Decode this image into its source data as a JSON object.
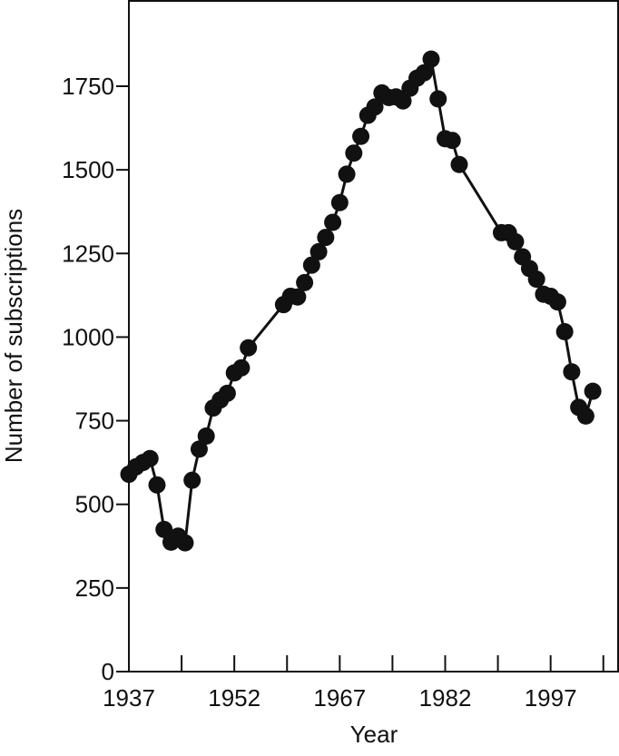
{
  "chart_data": {
    "type": "line",
    "x_label": "Year",
    "y_label": "Number of subscriptions",
    "x": [
      1937,
      1938,
      1939,
      1940,
      1941,
      1942,
      1943,
      1944,
      1945,
      1946,
      1947,
      1948,
      1949,
      1950,
      1951,
      1952,
      1953,
      1954,
      1959,
      1960,
      1961,
      1962,
      1963,
      1964,
      1965,
      1966,
      1967,
      1968,
      1969,
      1970,
      1971,
      1972,
      1973,
      1974,
      1975,
      1976,
      1977,
      1978,
      1979,
      1980,
      1981,
      1982,
      1983,
      1984,
      1990,
      1991,
      1992,
      1993,
      1994,
      1995,
      1996,
      1997,
      1998,
      1999,
      2000,
      2001,
      2002,
      2003
    ],
    "series": [
      {
        "color": "#111111",
        "values": [
          590,
          612,
          625,
          637,
          558,
          425,
          387,
          405,
          385,
          572,
          665,
          704,
          788,
          812,
          832,
          893,
          908,
          968,
          1097,
          1122,
          1120,
          1163,
          1215,
          1255,
          1298,
          1343,
          1402,
          1487,
          1550,
          1600,
          1663,
          1688,
          1730,
          1716,
          1718,
          1706,
          1744,
          1774,
          1790,
          1831,
          1712,
          1593,
          1588,
          1516,
          1312,
          1312,
          1285,
          1240,
          1205,
          1173,
          1128,
          1122,
          1105,
          1016,
          896,
          790,
          764,
          838
        ]
      }
    ],
    "xlim": [
      1937,
      2006.6
    ],
    "ylim": [
      0,
      2005
    ],
    "xticks": [
      1937,
      1952,
      1967,
      1982,
      1997
    ],
    "xminorticks": [
      1944.5,
      1959.5,
      1974.5,
      1989.5,
      2004.5
    ],
    "yticks": [
      0,
      250,
      500,
      750,
      1000,
      1250,
      1500,
      1750
    ]
  }
}
